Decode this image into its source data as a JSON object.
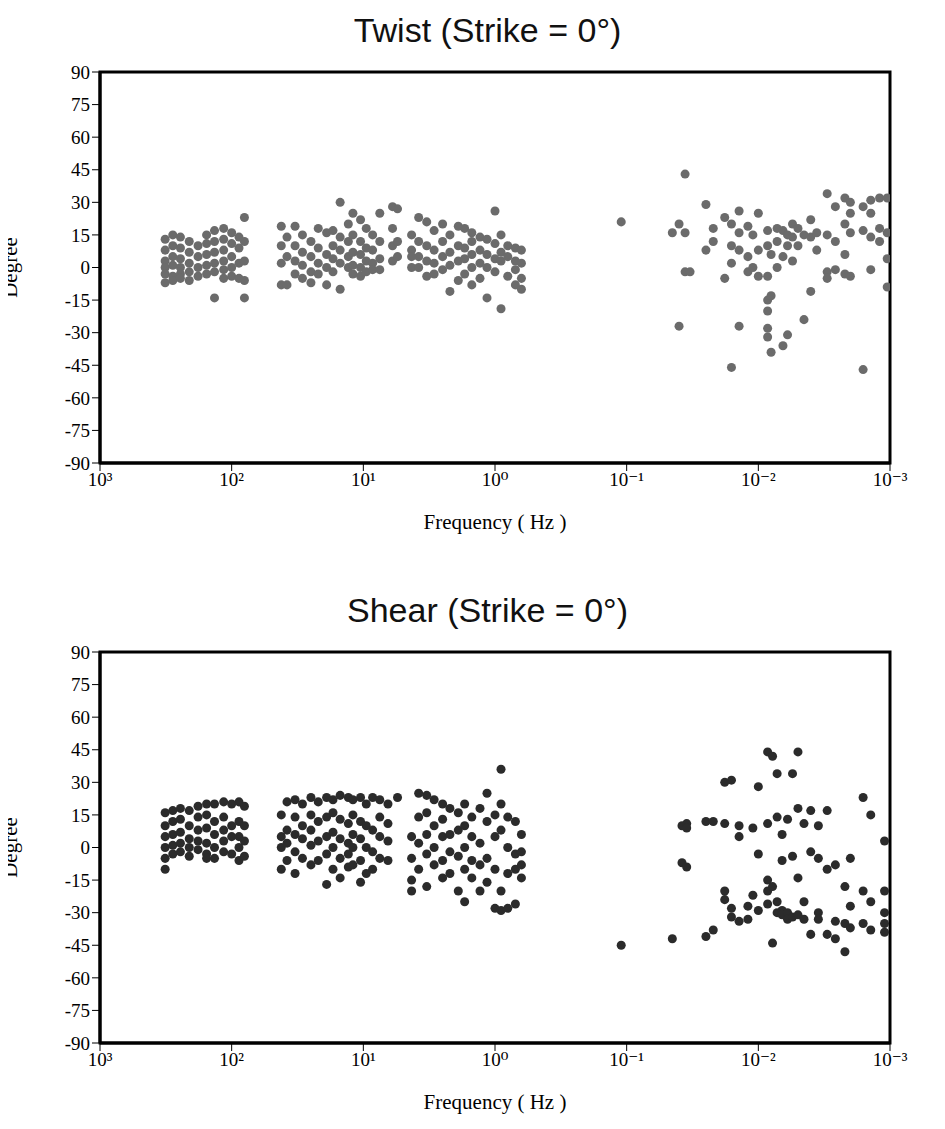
{
  "chart_data": [
    {
      "type": "scatter",
      "title": "Twist (Strike = 0°)",
      "x_label": "Frequency ( Hz )",
      "y_label": "Degree",
      "log": "x",
      "color": "#6b6b6b",
      "marker": "circle",
      "xlim": [
        1000,
        0.001
      ],
      "ylim": [
        -90,
        90
      ],
      "xticks": [
        {
          "value": 1000,
          "label": "10³"
        },
        {
          "value": 100,
          "label": "10²"
        },
        {
          "value": 10,
          "label": "10¹"
        },
        {
          "value": 1,
          "label": "10⁰"
        },
        {
          "value": 0.1,
          "label": "10⁻¹"
        },
        {
          "value": 0.01,
          "label": "10⁻²"
        },
        {
          "value": 0.001,
          "label": "10⁻³"
        }
      ],
      "yticks": [
        -90,
        -75,
        -60,
        -45,
        -30,
        -15,
        0,
        15,
        30,
        45,
        60,
        75,
        90
      ],
      "x": [
        320,
        320,
        320,
        320,
        320,
        320,
        280,
        280,
        280,
        280,
        280,
        280,
        245,
        245,
        245,
        245,
        245,
        245,
        210,
        210,
        210,
        210,
        210,
        180,
        180,
        180,
        180,
        155,
        155,
        155,
        155,
        155,
        135,
        135,
        135,
        135,
        135,
        135,
        115,
        115,
        115,
        115,
        115,
        115,
        100,
        100,
        100,
        100,
        100,
        88,
        88,
        88,
        88,
        80,
        80,
        80,
        80,
        80,
        42,
        42,
        42,
        42,
        38,
        38,
        38,
        33,
        33,
        33,
        33,
        29,
        29,
        29,
        29,
        25,
        25,
        25,
        25,
        22,
        22,
        22,
        22,
        19,
        19,
        19,
        19,
        17,
        17,
        17,
        17,
        15,
        15,
        15,
        15,
        15,
        13,
        13,
        13,
        13,
        12,
        12,
        12,
        12,
        12,
        10.5,
        10.5,
        10.5,
        10.5,
        10.5,
        9.5,
        9.5,
        9.5,
        9.5,
        8.5,
        8.5,
        8.5,
        8.5,
        7.5,
        7.5,
        7.5,
        7.5,
        6,
        6,
        6,
        6,
        5.5,
        5.5,
        5.5,
        4.3,
        4.3,
        4.3,
        4.3,
        3.8,
        3.8,
        3.8,
        3.8,
        3.3,
        3.3,
        3.3,
        3.3,
        2.9,
        2.9,
        2.9,
        2.9,
        2.5,
        2.5,
        2.5,
        2.5,
        2.2,
        2.2,
        2.2,
        2.2,
        1.9,
        1.9,
        1.9,
        1.9,
        1.7,
        1.7,
        1.7,
        1.7,
        1.5,
        1.5,
        1.5,
        1.5,
        1.5,
        1.3,
        1.3,
        1.3,
        1.3,
        1.15,
        1.15,
        1.15,
        1.15,
        1,
        1,
        1,
        1,
        0.9,
        0.9,
        0.9,
        0.9,
        0.8,
        0.8,
        0.8,
        0.7,
        0.7,
        0.7,
        0.7,
        0.63,
        0.63,
        0.63,
        0.63,
        0.11,
        0.045,
        0.04,
        0.04,
        0.036,
        0.036,
        0.036,
        0.033,
        0.025,
        0.025,
        0.022,
        0.022,
        0.018,
        0.018,
        0.016,
        0.016,
        0.016,
        0.016,
        0.014,
        0.014,
        0.014,
        0.014,
        0.012,
        0.012,
        0.012,
        0.011,
        0.011,
        0.01,
        0.01,
        0.01,
        0.0085,
        0.0085,
        0.0085,
        0.0085,
        0.0085,
        0.0085,
        0.0085,
        0.008,
        0.008,
        0.008,
        0.0072,
        0.0072,
        0.0072,
        0.0065,
        0.0065,
        0.0065,
        0.006,
        0.006,
        0.006,
        0.0055,
        0.0055,
        0.0055,
        0.005,
        0.005,
        0.0045,
        0.0045,
        0.004,
        0.004,
        0.004,
        0.0036,
        0.0036,
        0.003,
        0.003,
        0.003,
        0.003,
        0.0026,
        0.0026,
        0.0026,
        0.0022,
        0.0022,
        0.0022,
        0.0022,
        0.002,
        0.002,
        0.002,
        0.002,
        0.0016,
        0.0016,
        0.0016,
        0.0014,
        0.0014,
        0.0014,
        0.0014,
        0.0012,
        0.0012,
        0.0012,
        0.00105,
        0.00105,
        0.00105,
        0.00105
      ],
      "values": [
        13,
        8,
        3,
        0,
        -3,
        -7,
        15,
        10,
        5,
        1,
        -4,
        -6,
        14,
        9,
        4,
        0,
        -3,
        -5,
        12,
        7,
        2,
        -2,
        -6,
        10,
        5,
        0,
        -4,
        15,
        11,
        6,
        1,
        -3,
        17,
        12,
        7,
        2,
        -2,
        -14,
        18,
        13,
        8,
        3,
        -1,
        -5,
        16,
        11,
        5,
        0,
        -4,
        14,
        9,
        2,
        -5,
        23,
        12,
        3,
        -6,
        -14,
        -8,
        2,
        10,
        19,
        5,
        -8,
        14,
        19,
        10,
        3,
        -3,
        15,
        7,
        1,
        -5,
        12,
        5,
        -2,
        -7,
        18,
        9,
        2,
        -3,
        16,
        6,
        0,
        -8,
        17,
        10,
        4,
        -2,
        30,
        14,
        8,
        2,
        -10,
        20,
        12,
        5,
        0,
        25,
        15,
        7,
        1,
        -3,
        22,
        12,
        6,
        0,
        -4,
        18,
        9,
        3,
        -2,
        15,
        8,
        2,
        -1,
        25,
        12,
        4,
        -1,
        28,
        18,
        10,
        3,
        27,
        12,
        5,
        15,
        8,
        5,
        0,
        23,
        12,
        5,
        0,
        21,
        10,
        3,
        -4,
        17,
        8,
        2,
        -3,
        20,
        12,
        5,
        -1,
        15,
        7,
        1,
        -11,
        19,
        10,
        3,
        -6,
        18,
        9,
        4,
        -3,
        16,
        12,
        6,
        0,
        -8,
        14,
        8,
        2,
        -5,
        13,
        6,
        0,
        -14,
        26,
        11,
        4,
        -2,
        15,
        7,
        3,
        -19,
        10,
        5,
        -4,
        9,
        3,
        -1,
        -8,
        8,
        2,
        -5,
        -10,
        21,
        16,
        20,
        -27,
        43,
        16,
        -2,
        -2,
        29,
        8,
        18,
        12,
        23,
        -5,
        20,
        10,
        2,
        -46,
        26,
        16,
        8,
        -27,
        19,
        5,
        -2,
        15,
        0,
        25,
        8,
        -4,
        17,
        10,
        -4,
        -15,
        -20,
        -28,
        -32,
        6,
        -13,
        -39,
        18,
        12,
        0,
        17,
        5,
        -36,
        15,
        10,
        -31,
        20,
        14,
        3,
        18,
        10,
        15,
        -24,
        22,
        14,
        -11,
        16,
        8,
        34,
        15,
        -2,
        -5,
        28,
        12,
        -1,
        32,
        20,
        6,
        -3,
        30,
        25,
        16,
        -4,
        28,
        17,
        -47,
        31,
        25,
        14,
        -1,
        32,
        18,
        12,
        32,
        16,
        4,
        -9
      ]
    },
    {
      "type": "scatter",
      "title": "Shear (Strike = 0°)",
      "x_label": "Frequency ( Hz )",
      "y_label": "Degree",
      "log": "x",
      "color": "#2b2b2b",
      "marker": "circle",
      "xlim": [
        1000,
        0.001
      ],
      "ylim": [
        -90,
        90
      ],
      "xticks": [
        {
          "value": 1000,
          "label": "10³"
        },
        {
          "value": 100,
          "label": "10²"
        },
        {
          "value": 10,
          "label": "10¹"
        },
        {
          "value": 1,
          "label": "10⁰"
        },
        {
          "value": 0.1,
          "label": "10⁻¹"
        },
        {
          "value": 0.01,
          "label": "10⁻²"
        },
        {
          "value": 0.001,
          "label": "10⁻³"
        }
      ],
      "yticks": [
        -90,
        -75,
        -60,
        -45,
        -30,
        -15,
        0,
        15,
        30,
        45,
        60,
        75,
        90
      ],
      "x": [
        320,
        320,
        320,
        320,
        320,
        320,
        280,
        280,
        280,
        280,
        280,
        245,
        245,
        245,
        245,
        245,
        210,
        210,
        210,
        210,
        210,
        180,
        180,
        180,
        180,
        180,
        155,
        155,
        155,
        155,
        155,
        155,
        135,
        135,
        135,
        135,
        135,
        115,
        115,
        115,
        115,
        115,
        100,
        100,
        100,
        100,
        88,
        88,
        88,
        88,
        88,
        80,
        80,
        80,
        80,
        42,
        42,
        42,
        42,
        38,
        38,
        38,
        38,
        33,
        33,
        33,
        33,
        33,
        29,
        29,
        29,
        29,
        25,
        25,
        25,
        25,
        25,
        22,
        22,
        22,
        22,
        19,
        19,
        19,
        19,
        19,
        17,
        17,
        17,
        17,
        17,
        15,
        15,
        15,
        15,
        15,
        13,
        13,
        13,
        13,
        13,
        12,
        12,
        12,
        12,
        12,
        10.5,
        10.5,
        10.5,
        10.5,
        10.5,
        9.5,
        9.5,
        9.5,
        9.5,
        8.5,
        8.5,
        8.5,
        8.5,
        7.5,
        7.5,
        7.5,
        7.5,
        6.5,
        6.5,
        6.5,
        6.5,
        5.5,
        4.3,
        4.3,
        4.3,
        4.3,
        3.8,
        3.8,
        3.8,
        3.8,
        3.3,
        3.3,
        3.3,
        3.3,
        3.3,
        2.9,
        2.9,
        2.9,
        2.9,
        2.5,
        2.5,
        2.5,
        2.5,
        2.5,
        2.2,
        2.2,
        2.2,
        2.2,
        1.9,
        1.9,
        1.9,
        1.9,
        1.7,
        1.7,
        1.7,
        1.7,
        1.7,
        1.5,
        1.5,
        1.5,
        1.5,
        1.3,
        1.3,
        1.3,
        1.3,
        1.15,
        1.15,
        1.15,
        1.15,
        1,
        1,
        1,
        1,
        0.9,
        0.9,
        0.9,
        0.9,
        0.9,
        0.8,
        0.8,
        0.8,
        0.8,
        0.7,
        0.7,
        0.7,
        0.7,
        0.63,
        0.63,
        0.63,
        0.63,
        0.11,
        0.045,
        0.038,
        0.038,
        0.035,
        0.035,
        0.035,
        0.025,
        0.025,
        0.022,
        0.022,
        0.018,
        0.018,
        0.018,
        0.018,
        0.016,
        0.016,
        0.016,
        0.014,
        0.014,
        0.014,
        0.012,
        0.012,
        0.011,
        0.011,
        0.01,
        0.01,
        0.01,
        0.0085,
        0.0085,
        0.0085,
        0.0085,
        0.0085,
        0.0078,
        0.0078,
        0.0078,
        0.0072,
        0.0072,
        0.0072,
        0.0072,
        0.0066,
        0.0066,
        0.0066,
        0.0066,
        0.006,
        0.006,
        0.006,
        0.0055,
        0.0055,
        0.0055,
        0.005,
        0.005,
        0.005,
        0.005,
        0.0045,
        0.0045,
        0.0045,
        0.004,
        0.004,
        0.004,
        0.0035,
        0.0035,
        0.0035,
        0.0035,
        0.003,
        0.003,
        0.003,
        0.0026,
        0.0026,
        0.0026,
        0.0022,
        0.0022,
        0.0022,
        0.002,
        0.002,
        0.002,
        0.0016,
        0.0016,
        0.0016,
        0.0014,
        0.0014,
        0.0014,
        0.0011,
        0.0011,
        0.0011,
        0.0011,
        0.0011
      ],
      "values": [
        16,
        10,
        5,
        0,
        -5,
        -10,
        17,
        12,
        6,
        1,
        -3,
        18,
        13,
        7,
        2,
        -2,
        17,
        10,
        4,
        0,
        -4,
        19,
        14,
        8,
        3,
        -1,
        20,
        15,
        9,
        2,
        -3,
        -5,
        20,
        12,
        6,
        0,
        -5,
        21,
        14,
        8,
        3,
        -2,
        20,
        10,
        5,
        -3,
        21,
        12,
        5,
        0,
        -6,
        19,
        10,
        3,
        -4,
        15,
        5,
        0,
        -10,
        21,
        8,
        2,
        -6,
        22,
        14,
        6,
        -2,
        -12,
        20,
        10,
        4,
        -5,
        23,
        15,
        8,
        1,
        -8,
        21,
        12,
        3,
        -6,
        23,
        14,
        5,
        -3,
        -17,
        22,
        16,
        7,
        0,
        -10,
        24,
        13,
        4,
        -5,
        -14,
        23,
        11,
        2,
        -3,
        -9,
        22,
        15,
        6,
        0,
        -8,
        23,
        12,
        4,
        -6,
        -16,
        20,
        10,
        0,
        -12,
        23,
        8,
        -2,
        -10,
        22,
        14,
        5,
        -5,
        20,
        11,
        3,
        -6,
        23,
        5,
        -5,
        -15,
        -20,
        25,
        14,
        2,
        -10,
        24,
        16,
        6,
        -3,
        -18,
        22,
        10,
        0,
        -8,
        20,
        13,
        5,
        -6,
        -14,
        18,
        6,
        -2,
        -12,
        16,
        8,
        -4,
        -20,
        20,
        10,
        0,
        -10,
        -25,
        14,
        5,
        -6,
        -14,
        18,
        2,
        -8,
        -20,
        25,
        12,
        -5,
        -16,
        15,
        5,
        -10,
        -28,
        36,
        20,
        8,
        -20,
        -29,
        14,
        0,
        -12,
        -28,
        12,
        -3,
        -10,
        -26,
        6,
        -2,
        -8,
        -14,
        -45,
        -42,
        10,
        -7,
        11,
        9,
        -9,
        12,
        -41,
        12,
        -38,
        30,
        11,
        -20,
        -24,
        31,
        -28,
        -32,
        10,
        5,
        -34,
        -27,
        -33,
        9,
        -22,
        28,
        -3,
        -29,
        44,
        11,
        -15,
        -20,
        -26,
        42,
        -18,
        -44,
        34,
        14,
        -25,
        -30,
        6,
        -6,
        -29,
        -31,
        13,
        -30,
        -33,
        34,
        -4,
        -32,
        44,
        18,
        -14,
        -31,
        11,
        -25,
        -33,
        17,
        -2,
        -40,
        10,
        -5,
        -30,
        -33,
        17,
        -10,
        -40,
        -8,
        -34,
        -42,
        -18,
        -35,
        -48,
        -5,
        -27,
        -37,
        23,
        -20,
        -35,
        15,
        -25,
        -38,
        3,
        -20,
        -30,
        -35,
        -39
      ]
    }
  ]
}
